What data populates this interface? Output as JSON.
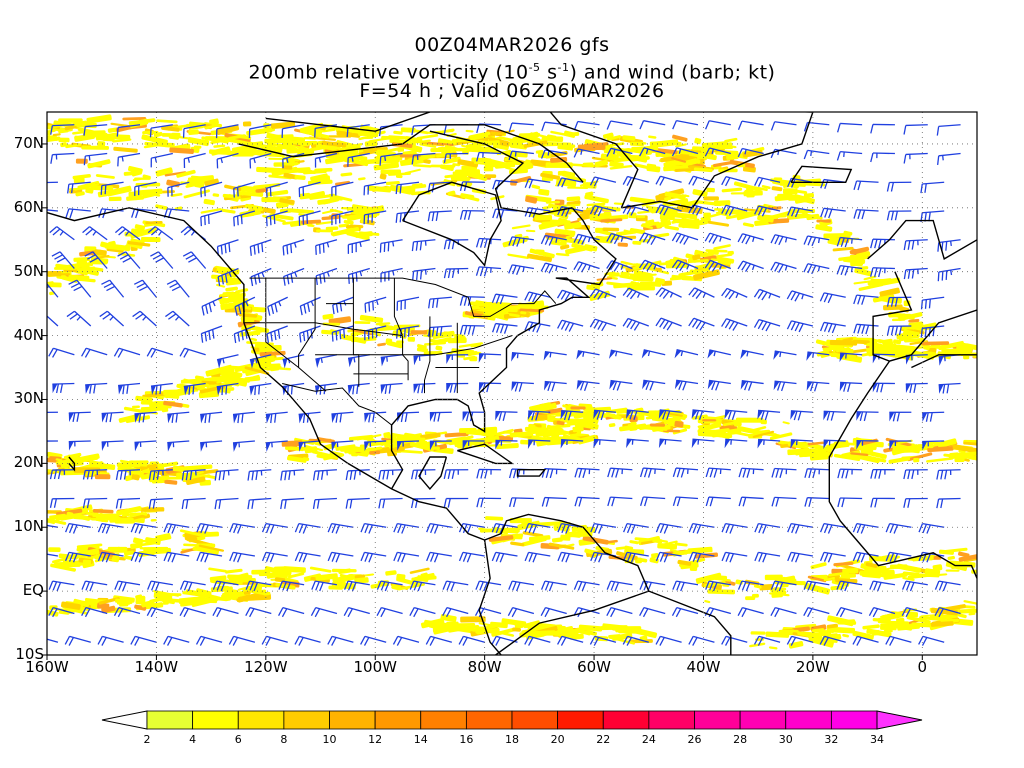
{
  "title": {
    "line1": "00Z04MAR2026 gfs",
    "line2": "200mb relative vorticity (10",
    "line2_exp1": "-5",
    "line2_mid": " s",
    "line2_exp2": "-1",
    "line2_end": ") and wind (barb; kt)",
    "line3": "F=54 h ; Valid 06Z06MAR2026"
  },
  "map": {
    "lat_labels": [
      "70N",
      "60N",
      "50N",
      "40N",
      "30N",
      "20N",
      "10N",
      "EQ",
      "10S"
    ],
    "lat_values": [
      70,
      60,
      50,
      40,
      30,
      20,
      10,
      0,
      -10
    ],
    "lon_labels": [
      "160W",
      "140W",
      "120W",
      "100W",
      "80W",
      "60W",
      "40W",
      "20W",
      "0"
    ],
    "lon_values": [
      -160,
      -140,
      -120,
      -100,
      -80,
      -60,
      -40,
      -20,
      0
    ],
    "lon_range": [
      -160,
      10
    ],
    "lat_range": [
      -10,
      75
    ],
    "shading_color": "#ffff00",
    "barb_color": "#2040e0",
    "coast_color": "#000000"
  },
  "colorbar": {
    "levels": [
      "2",
      "4",
      "6",
      "8",
      "10",
      "12",
      "14",
      "16",
      "18",
      "20",
      "22",
      "24",
      "26",
      "28",
      "30",
      "32",
      "34"
    ],
    "colors": [
      "#e6ff33",
      "#ffff00",
      "#ffe600",
      "#ffcc00",
      "#ffb300",
      "#ff9900",
      "#ff8000",
      "#ff6600",
      "#ff4d00",
      "#ff1a00",
      "#ff0033",
      "#ff0066",
      "#ff0099",
      "#ff00b3",
      "#ff00cc",
      "#ff00e6"
    ],
    "under_color": "#ffffff",
    "over_color": "#ff33ff"
  }
}
